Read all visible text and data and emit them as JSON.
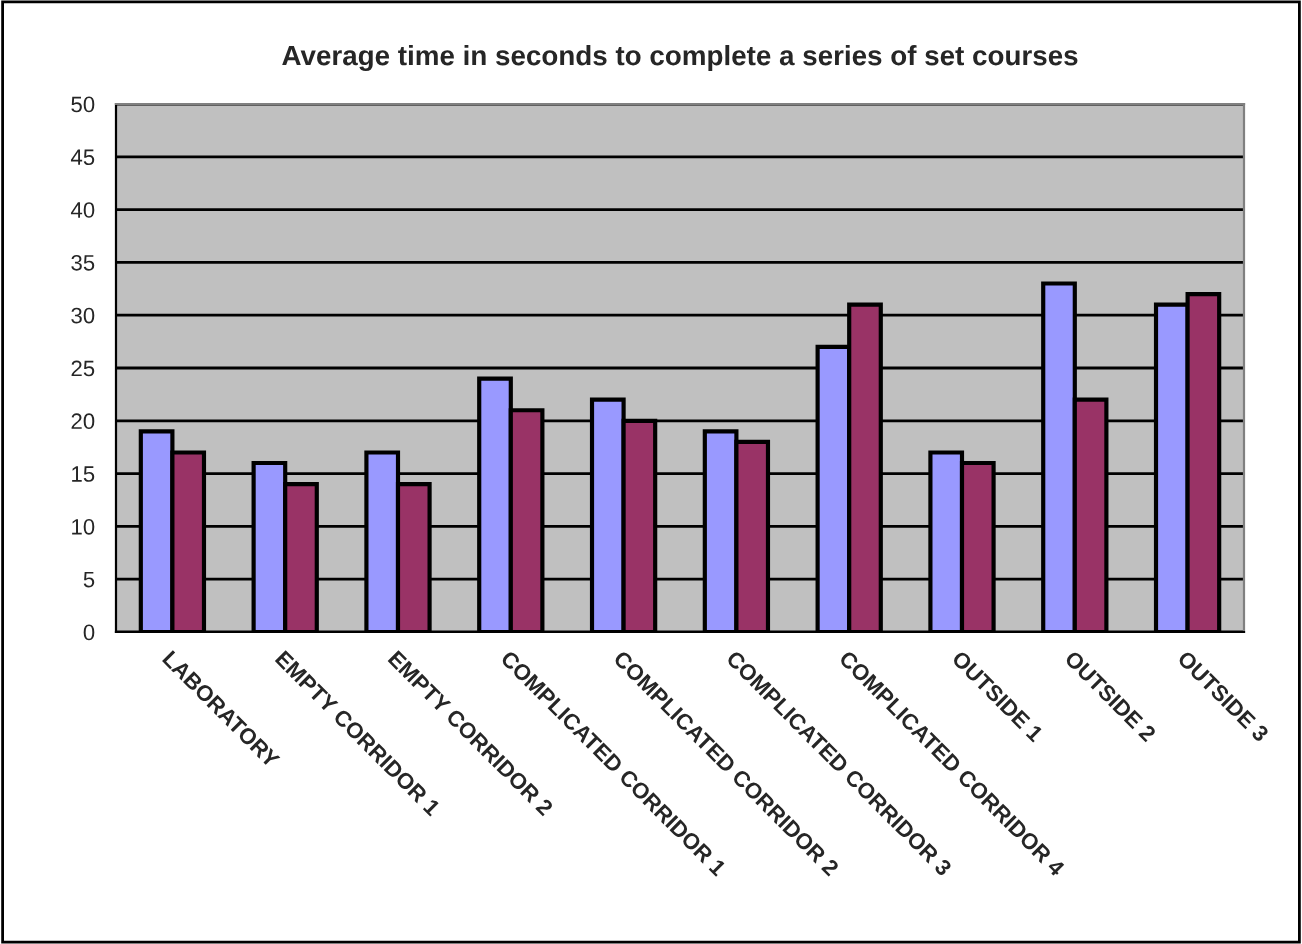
{
  "chart_data": {
    "type": "bar",
    "title": "Average time in seconds to complete a series of set courses",
    "categories": [
      "LABORATORY",
      "EMPTY CORRIDOR 1",
      "EMPTY CORRIDOR 2",
      "COMPLICATED CORRIDOR 1",
      "COMPLICATED CORRIDOR 2",
      "COMPLICATED CORRIDOR 3",
      "COMPLICATED CORRIDOR 4",
      "OUTSIDE 1",
      "OUTSIDE 2",
      "OUTSIDE 3"
    ],
    "series": [
      {
        "color": "#9999ff",
        "values": [
          19,
          16,
          17,
          24,
          22,
          19,
          27,
          17,
          33,
          31
        ]
      },
      {
        "color": "#993366",
        "values": [
          17,
          14,
          14,
          21,
          20,
          18,
          31,
          16,
          22,
          32
        ]
      }
    ],
    "ylim": [
      0,
      50
    ],
    "yticks": [
      0,
      5,
      10,
      15,
      20,
      25,
      30,
      35,
      40,
      45,
      50
    ],
    "grid": "y"
  }
}
